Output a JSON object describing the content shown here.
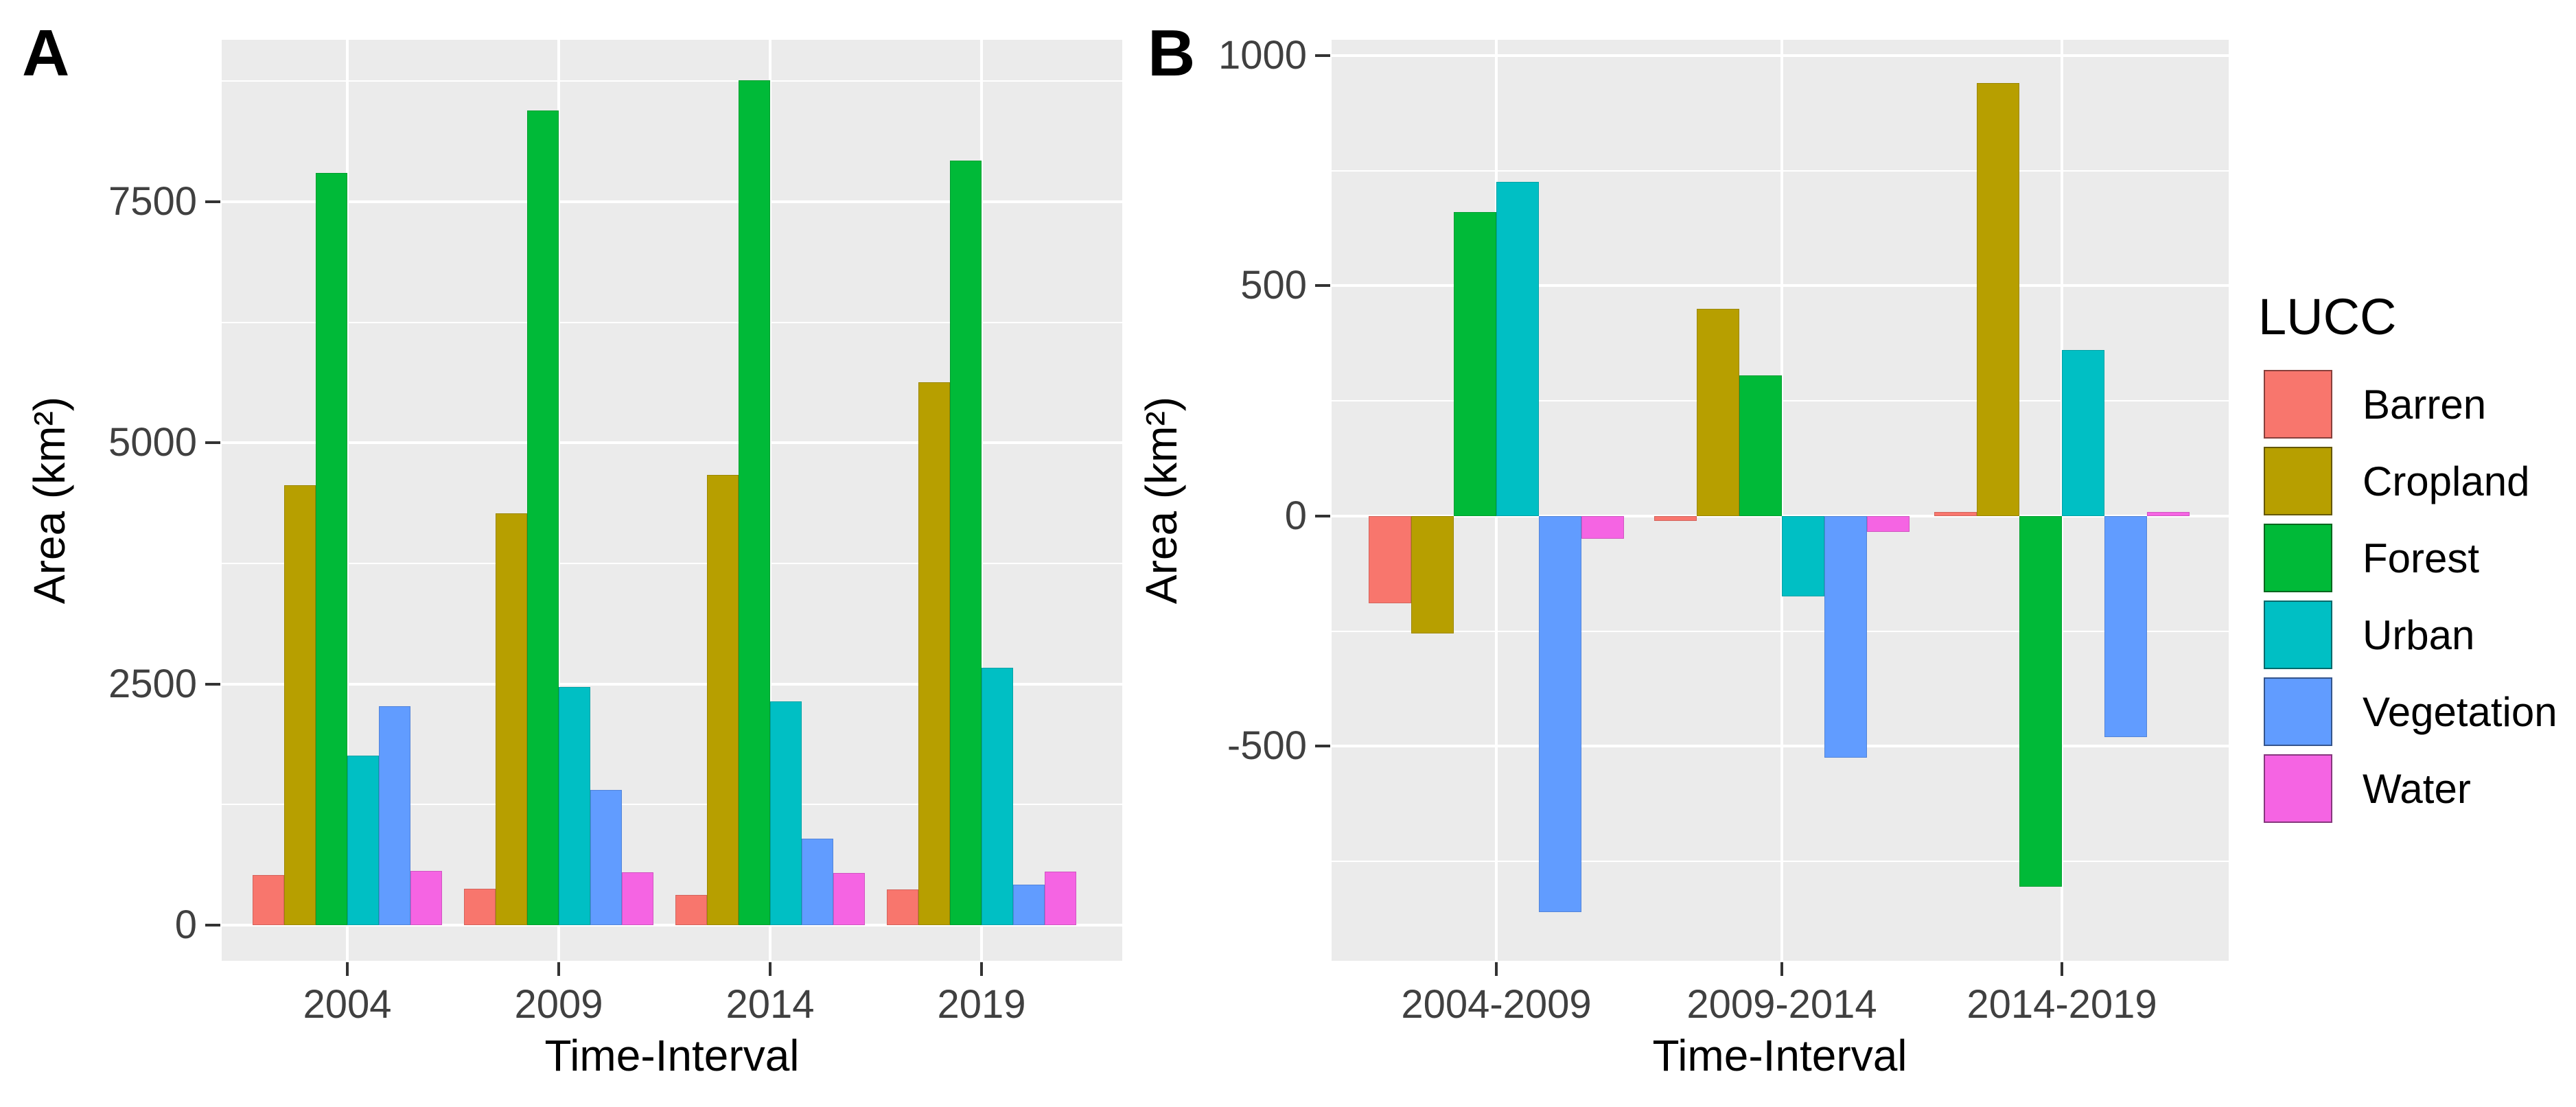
{
  "figure": {
    "panel_a_label": "A",
    "panel_b_label": "B",
    "xlabel": "Time-Interval",
    "ylabel": "Area (km²)"
  },
  "legend": {
    "title": "LUCC",
    "entries": [
      {
        "label": "Barren",
        "color": "#F8766D"
      },
      {
        "label": "Cropland",
        "color": "#B79F00"
      },
      {
        "label": "Forest",
        "color": "#00BA38"
      },
      {
        "label": "Urban",
        "color": "#00BFC4"
      },
      {
        "label": "Vegetation",
        "color": "#619CFF"
      },
      {
        "label": "Water",
        "color": "#F564E3"
      }
    ]
  },
  "colors": {
    "panel_background": "#EBEBEB",
    "grid": "#FFFFFF",
    "tick_text": "#404040",
    "axis_text": "#000000",
    "background": "#FFFFFF"
  },
  "chart_data": [
    {
      "id": "A",
      "type": "bar",
      "title": "A",
      "categories": [
        "2004",
        "2009",
        "2014",
        "2019"
      ],
      "series": [
        {
          "name": "Barren",
          "color": "#F8766D",
          "values": [
            520,
            380,
            310,
            370
          ]
        },
        {
          "name": "Cropland",
          "color": "#B79F00",
          "values": [
            4560,
            4270,
            4670,
            5630
          ]
        },
        {
          "name": "Forest",
          "color": "#00BA38",
          "values": [
            7800,
            8450,
            8760,
            7930
          ]
        },
        {
          "name": "Urban",
          "color": "#00BFC4",
          "values": [
            1760,
            2470,
            2320,
            2670
          ]
        },
        {
          "name": "Vegetation",
          "color": "#619CFF",
          "values": [
            2270,
            1400,
            900,
            420
          ]
        },
        {
          "name": "Water",
          "color": "#F564E3",
          "values": [
            560,
            545,
            540,
            555
          ]
        }
      ],
      "xlabel": "Time-Interval",
      "ylabel": "Area (km²)",
      "ylim": [
        -370,
        9180
      ],
      "yticks_major": [
        0,
        2500,
        5000,
        7500
      ],
      "yticks_minor": [
        1250,
        3750,
        6250,
        8750
      ],
      "grid": true,
      "legend_position": "right-shared"
    },
    {
      "id": "B",
      "type": "bar",
      "title": "B",
      "categories": [
        "2004-2009",
        "2009-2014",
        "2014-2019"
      ],
      "series": [
        {
          "name": "Barren",
          "color": "#F8766D",
          "values": [
            -190,
            -10,
            8
          ]
        },
        {
          "name": "Cropland",
          "color": "#B79F00",
          "values": [
            -255,
            450,
            940
          ]
        },
        {
          "name": "Forest",
          "color": "#00BA38",
          "values": [
            660,
            305,
            -805
          ]
        },
        {
          "name": "Urban",
          "color": "#00BFC4",
          "values": [
            725,
            -175,
            360
          ]
        },
        {
          "name": "Vegetation",
          "color": "#619CFF",
          "values": [
            -860,
            -525,
            -480
          ]
        },
        {
          "name": "Water",
          "color": "#F564E3",
          "values": [
            -50,
            -35,
            8
          ]
        }
      ],
      "xlabel": "Time-Interval",
      "ylabel": "Area (km²)",
      "ylim": [
        -966,
        1034
      ],
      "yticks_major": [
        -500,
        0,
        500,
        1000
      ],
      "yticks_minor": [
        -750,
        -250,
        250,
        750
      ],
      "grid": true,
      "legend_position": "right-shared"
    }
  ]
}
